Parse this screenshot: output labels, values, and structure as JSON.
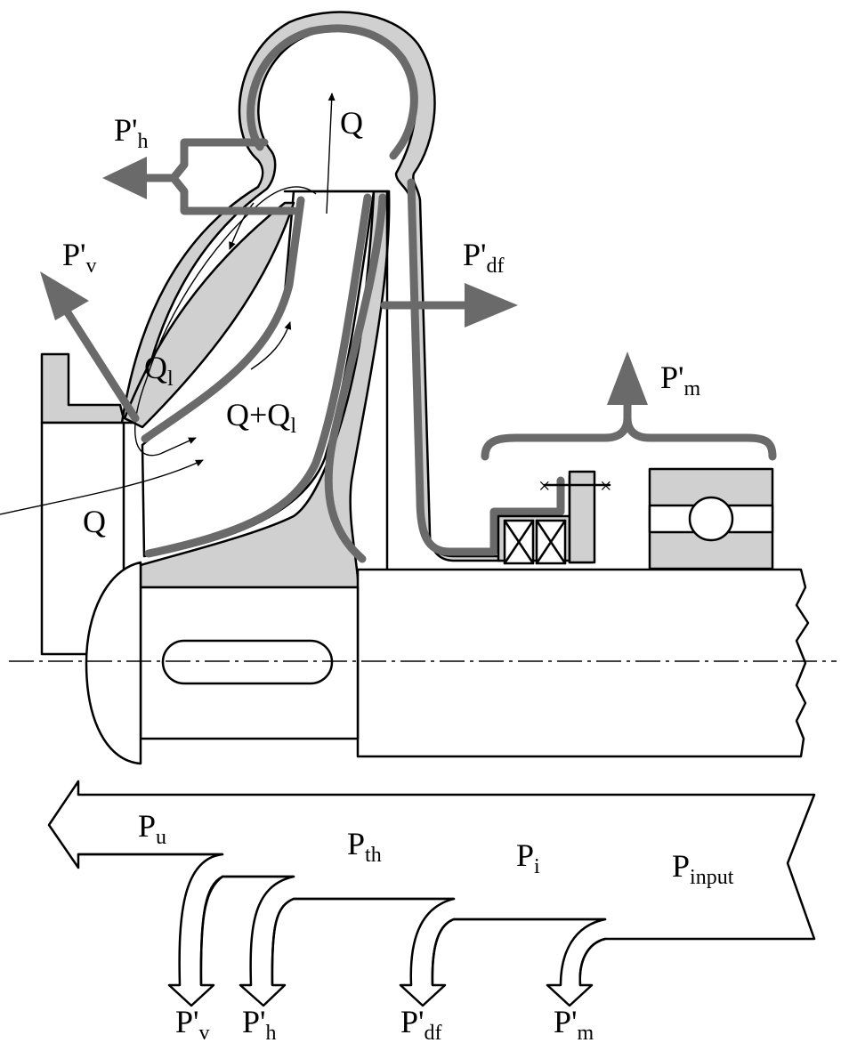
{
  "labels": {
    "Q_top": "Q",
    "Q_inlet": "Q",
    "Q_leak": "Q",
    "Q_leak_sub": "l",
    "Q_sum": "Q+Q",
    "Q_sum_sub": "l",
    "Ph": "P'",
    "Ph_sub": "h",
    "Pv": "P'",
    "Pv_sub": "v",
    "Pdf": "P'",
    "Pdf_sub": "df",
    "Pm": "P'",
    "Pm_sub": "m",
    "Pu": "P",
    "Pu_sub": "u",
    "Pth": "P",
    "Pth_sub": "th",
    "Pi": "P",
    "Pi_sub": "i",
    "Pinput": "P",
    "Pinput_sub": "input",
    "Pv_bottom": "P'",
    "Pv_bottom_sub": "v",
    "Ph_bottom": "P'",
    "Ph_bottom_sub": "h",
    "Pdf_bottom": "P'",
    "Pdf_bottom_sub": "df",
    "Pm_bottom": "P'",
    "Pm_bottom_sub": "m"
  },
  "colors": {
    "part_fill": "#d0d0d0",
    "loss_arrow": "#6a6a6a",
    "line": "#000000"
  }
}
